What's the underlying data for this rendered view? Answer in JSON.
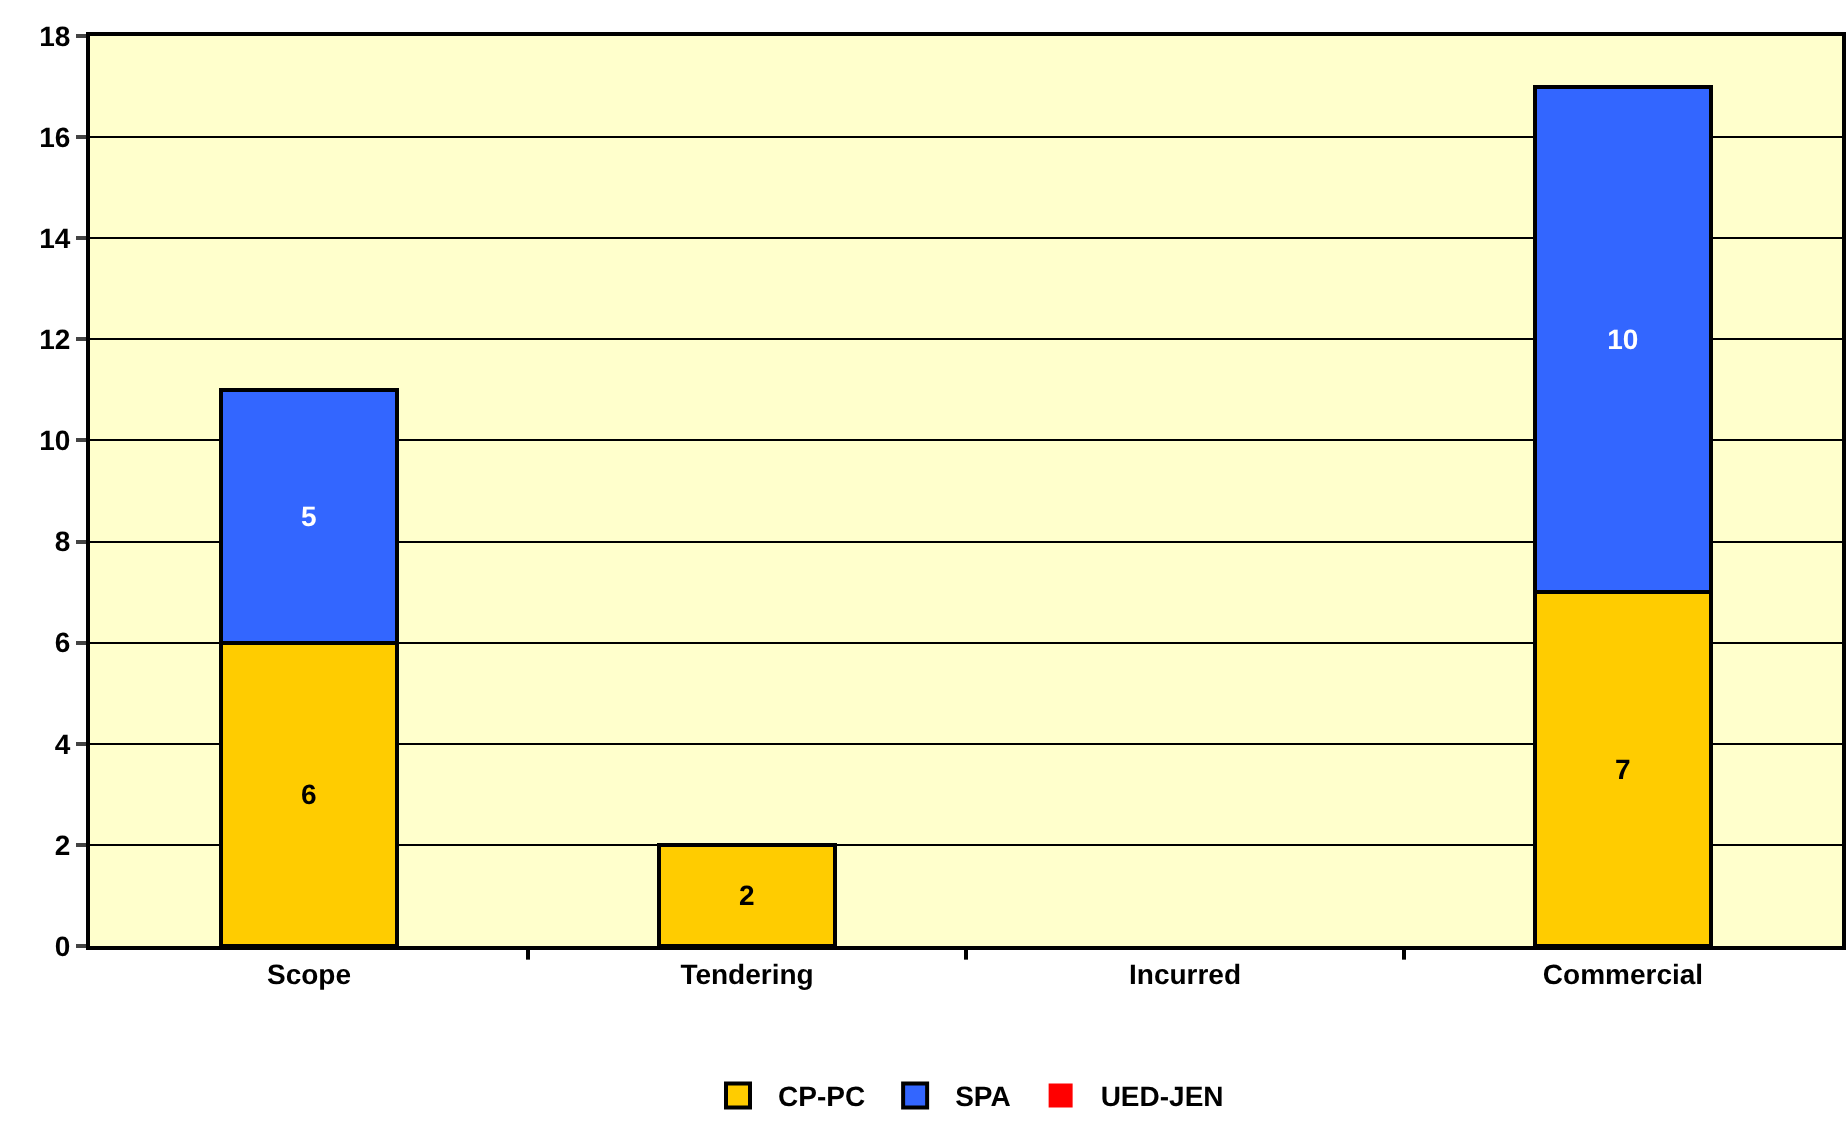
{
  "chart_data": {
    "type": "bar",
    "stacked": true,
    "categories": [
      "Scope",
      "Tendering",
      "Incurred",
      "Commercial"
    ],
    "series": [
      {
        "name": "CP-PC",
        "color": "#ffcc00",
        "values": [
          6,
          2,
          0,
          7
        ],
        "value_labels": [
          "6",
          "2",
          null,
          "7"
        ]
      },
      {
        "name": "SPA",
        "color": "#3366ff",
        "values": [
          5,
          0,
          0,
          10
        ],
        "value_labels": [
          "5",
          null,
          null,
          "10"
        ]
      },
      {
        "name": "UED-JEN",
        "color": "#ff0000",
        "values": [
          0,
          0,
          0,
          0
        ],
        "value_labels": [
          null,
          null,
          null,
          null
        ]
      }
    ],
    "ylim": [
      0,
      18
    ],
    "yticks": [
      0,
      2,
      4,
      6,
      8,
      10,
      12,
      14,
      16,
      18
    ],
    "grid": "y",
    "legend": "bottom"
  }
}
